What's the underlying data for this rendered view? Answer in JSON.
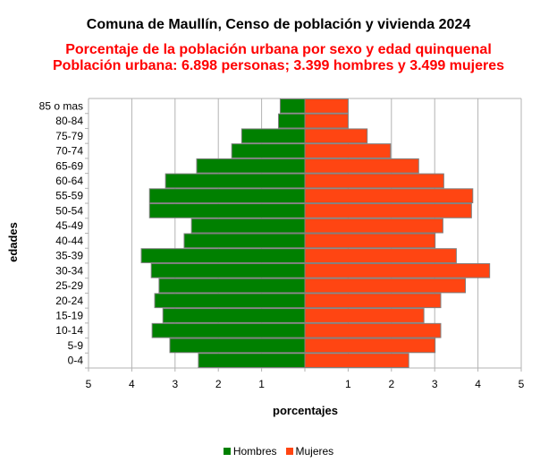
{
  "chart_data": {
    "type": "bar",
    "orientation": "horizontal-pyramid",
    "title": "Comuna de Maullín, Censo de población y vivienda 2024",
    "subtitle": [
      "Porcentaje de la población urbana por sexo y edad quinquenal",
      "Población urbana: 6.898 personas; 3.399 hombres y 3.499 mujeres"
    ],
    "xlabel": "porcentajes",
    "ylabel": "edades",
    "xlim": [
      -5,
      5
    ],
    "xticks": [
      "5",
      "4",
      "3",
      "2",
      "1",
      "",
      "1",
      "2",
      "3",
      "4",
      "5"
    ],
    "grid": true,
    "legend_position": "bottom",
    "categories": [
      "85 o mas",
      "80-84",
      "75-79",
      "70-74",
      "65-69",
      "60-64",
      "55-59",
      "50-54",
      "45-49",
      "40-44",
      "35-39",
      "30-34",
      "25-29",
      "20-24",
      "15-19",
      "10-14",
      "5-9",
      "0-4"
    ],
    "series": [
      {
        "name": "Hombres",
        "color": "#008000",
        "values": [
          0.57,
          0.61,
          1.46,
          1.69,
          2.5,
          3.22,
          3.59,
          3.59,
          2.62,
          2.79,
          3.78,
          3.55,
          3.37,
          3.47,
          3.28,
          3.53,
          3.12,
          2.46
        ]
      },
      {
        "name": "Mujeres",
        "color": "#ff4512",
        "values": [
          1.0,
          1.0,
          1.44,
          1.98,
          2.63,
          3.21,
          3.88,
          3.85,
          3.19,
          3.01,
          3.5,
          4.27,
          3.71,
          3.14,
          2.75,
          3.14,
          3.01,
          2.4
        ]
      }
    ]
  }
}
